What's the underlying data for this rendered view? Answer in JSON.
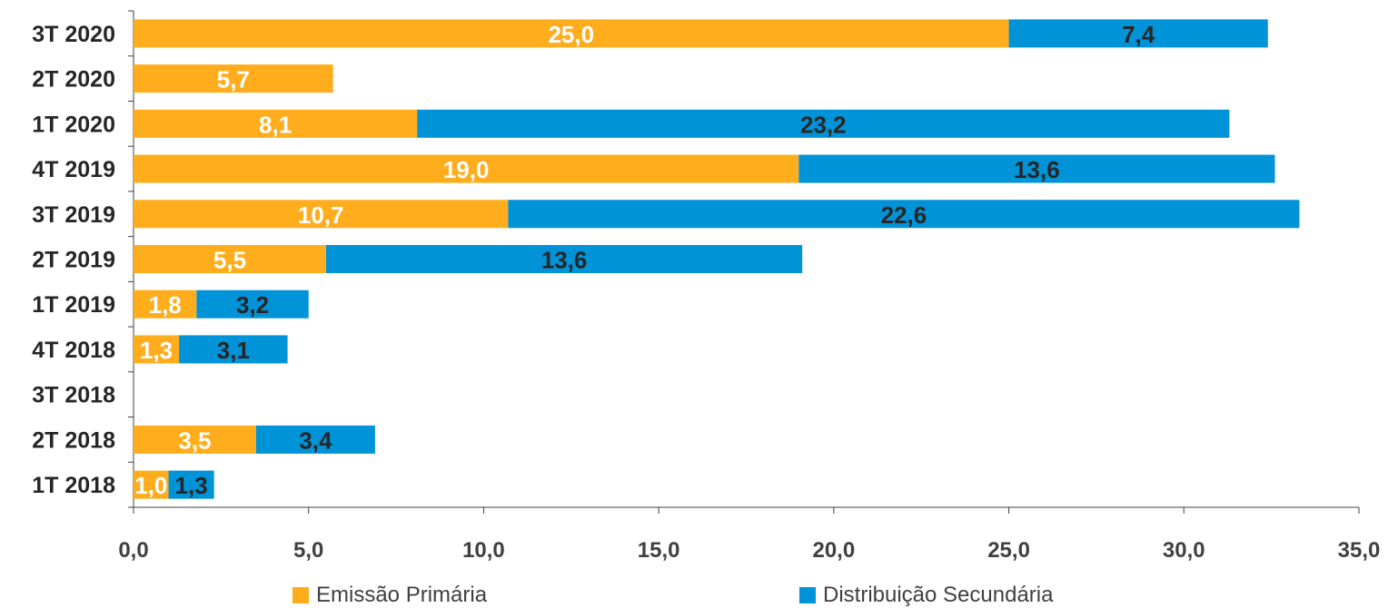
{
  "chart_data": {
    "type": "bar",
    "orientation": "horizontal",
    "stacked": true,
    "categories": [
      "3T 2020",
      "2T 2020",
      "1T 2020",
      "4T 2019",
      "3T 2019",
      "2T 2019",
      "1T 2019",
      "4T 2018",
      "3T 2018",
      "2T 2018",
      "1T 2018"
    ],
    "series": [
      {
        "name": "Emissão Primária",
        "color": "#FFAD1D",
        "label_color": "#FFFFFF",
        "values": [
          25.0,
          5.7,
          8.1,
          19.0,
          10.7,
          5.5,
          1.8,
          1.3,
          null,
          3.5,
          1.0
        ],
        "labels": [
          "25,0",
          "5,7",
          "8,1",
          "19,0",
          "10,7",
          "5,5",
          "1,8",
          "1,3",
          "",
          "3,5",
          "1,0"
        ]
      },
      {
        "name": "Distribuição Secundária",
        "color": "#0093D8",
        "label_color": "#262626",
        "values": [
          7.4,
          null,
          23.2,
          13.6,
          22.6,
          13.6,
          3.2,
          3.1,
          null,
          3.4,
          1.3
        ],
        "labels": [
          "7,4",
          "",
          "23,2",
          "13,6",
          "22,6",
          "13,6",
          "3,2",
          "3,1",
          "",
          "3,4",
          "1,3"
        ]
      }
    ],
    "xlim": [
      0,
      35
    ],
    "x_ticks": [
      0,
      5,
      10,
      15,
      20,
      25,
      30,
      35
    ],
    "x_tick_labels": [
      "0,0",
      "5,0",
      "10,0",
      "15,0",
      "20,0",
      "25,0",
      "30,0",
      "35,0"
    ],
    "grid": false,
    "legend_position": "bottom"
  }
}
